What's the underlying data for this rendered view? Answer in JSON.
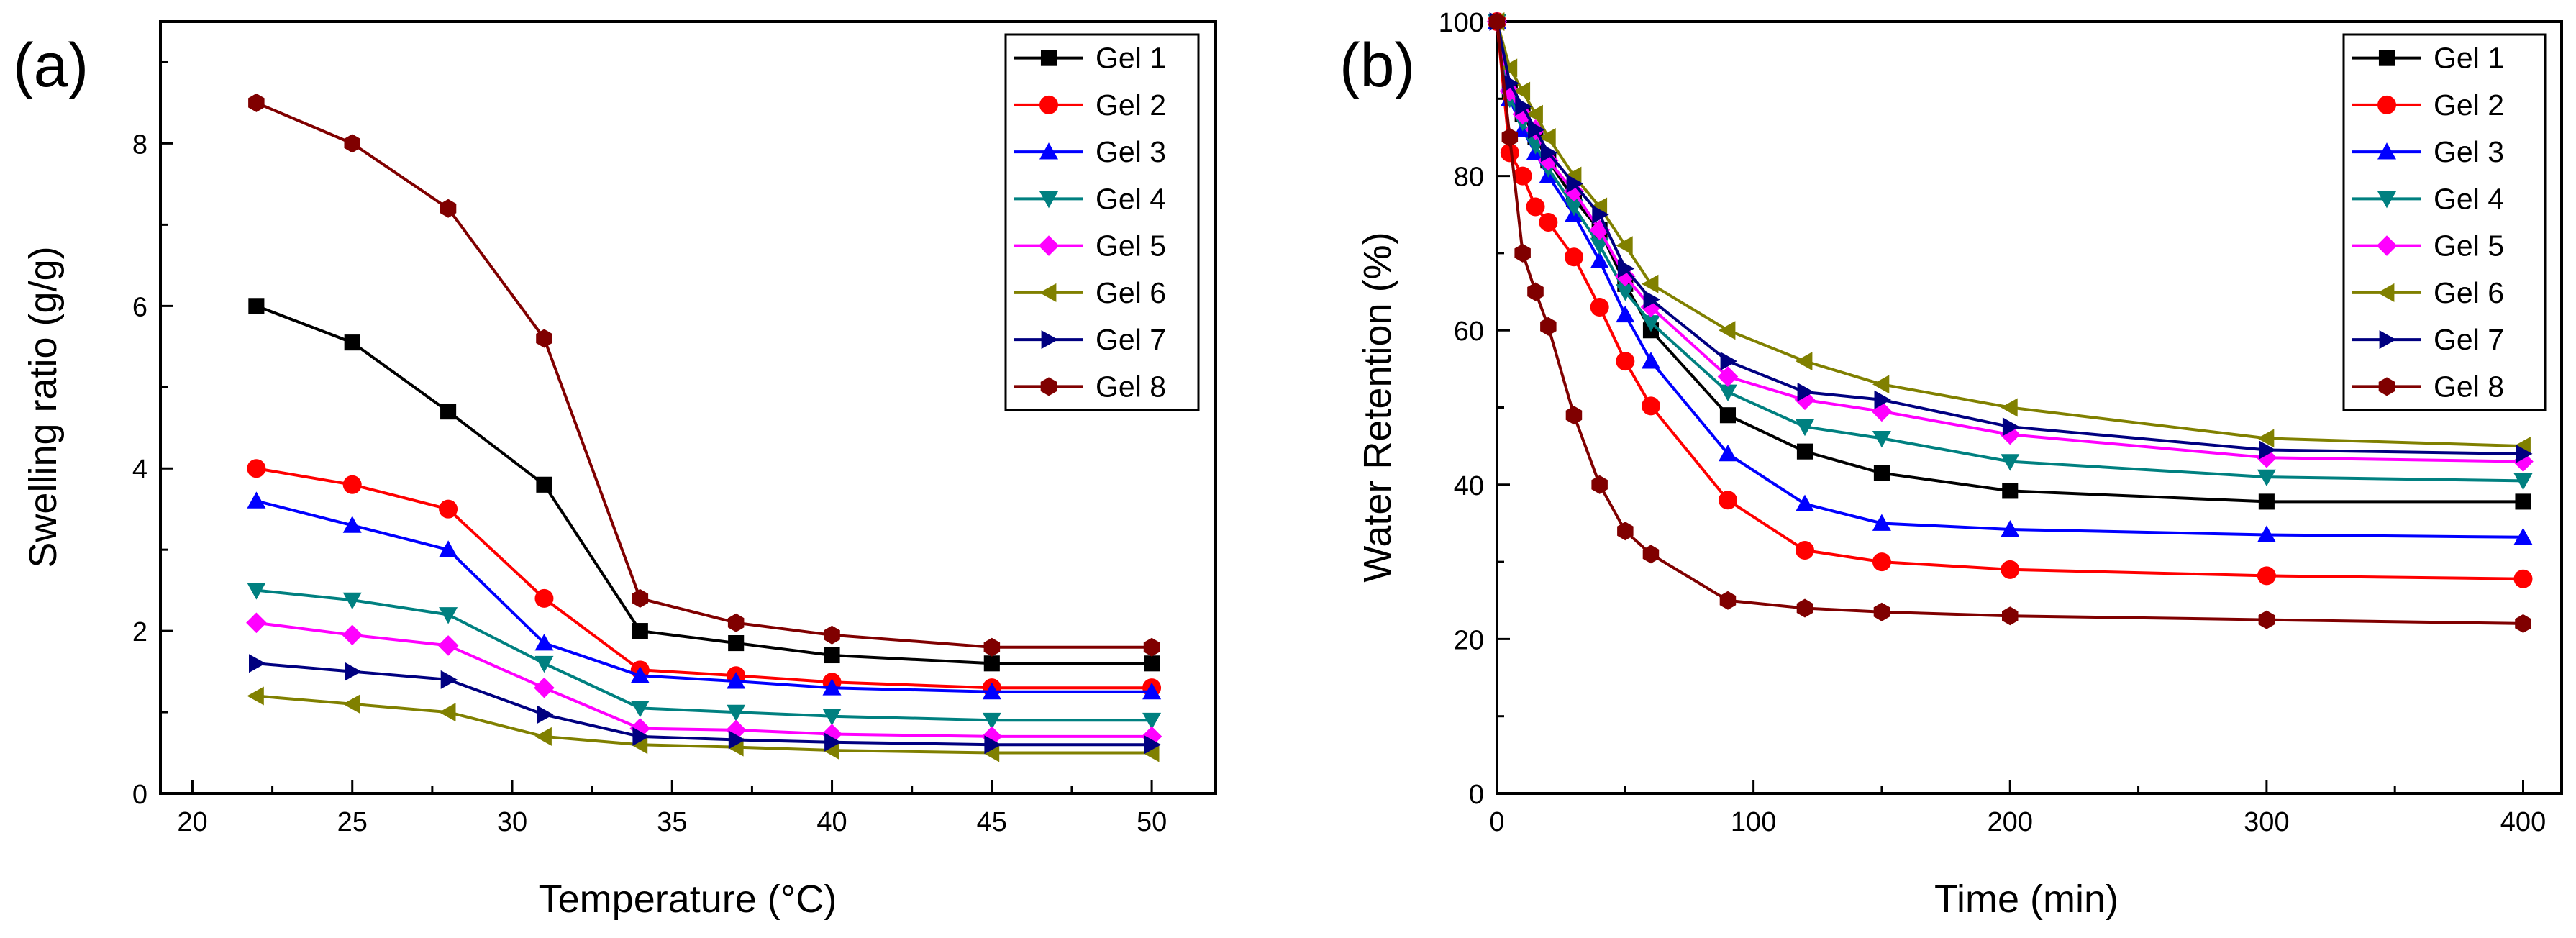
{
  "chart_data": [
    {
      "type": "line",
      "panel_label": "(a)",
      "title": "",
      "xlabel": "Temperature (°C)",
      "ylabel": "Swelling ratio (g/g)",
      "xlim": [
        19,
        52
      ],
      "ylim": [
        0,
        9.5
      ],
      "xticks": [
        20,
        25,
        30,
        35,
        40,
        45,
        50
      ],
      "yticks": [
        0,
        2,
        4,
        6,
        8
      ],
      "grid": false,
      "legend": "top-right",
      "x": [
        22,
        25,
        28,
        31,
        34,
        37,
        40,
        45,
        50
      ],
      "series": [
        {
          "name": "Gel 1",
          "color": "#000000",
          "marker": "square",
          "values": [
            6.0,
            5.55,
            4.7,
            3.8,
            2.0,
            1.85,
            1.7,
            1.6,
            1.6
          ]
        },
        {
          "name": "Gel 2",
          "color": "#ff0000",
          "marker": "circle",
          "values": [
            4.0,
            3.8,
            3.5,
            2.4,
            1.52,
            1.45,
            1.37,
            1.3,
            1.3
          ]
        },
        {
          "name": "Gel 3",
          "color": "#0000ff",
          "marker": "triangle-up",
          "values": [
            3.6,
            3.3,
            3.0,
            1.85,
            1.45,
            1.38,
            1.3,
            1.25,
            1.25
          ]
        },
        {
          "name": "Gel 4",
          "color": "#008080",
          "marker": "triangle-down",
          "values": [
            2.5,
            2.38,
            2.2,
            1.6,
            1.05,
            1.0,
            0.95,
            0.9,
            0.9
          ]
        },
        {
          "name": "Gel 5",
          "color": "#ff00ff",
          "marker": "diamond",
          "values": [
            2.1,
            1.95,
            1.82,
            1.3,
            0.8,
            0.78,
            0.73,
            0.7,
            0.7
          ]
        },
        {
          "name": "Gel 6",
          "color": "#808000",
          "marker": "triangle-left",
          "values": [
            1.2,
            1.1,
            1.0,
            0.7,
            0.6,
            0.57,
            0.53,
            0.5,
            0.5
          ]
        },
        {
          "name": "Gel 7",
          "color": "#000080",
          "marker": "triangle-right",
          "values": [
            1.6,
            1.5,
            1.4,
            0.97,
            0.7,
            0.66,
            0.63,
            0.6,
            0.6
          ]
        },
        {
          "name": "Gel 8",
          "color": "#800000",
          "marker": "hexagon",
          "values": [
            8.5,
            8.0,
            7.2,
            5.6,
            2.4,
            2.1,
            1.95,
            1.8,
            1.8
          ]
        }
      ]
    },
    {
      "type": "line",
      "panel_label": "(b)",
      "title": "",
      "xlabel": "Time (min)",
      "ylabel": "Water Retention (%)",
      "xlim": [
        0,
        415
      ],
      "ylim": [
        0,
        100
      ],
      "xticks": [
        0,
        100,
        200,
        300,
        400
      ],
      "yticks": [
        0,
        20,
        40,
        60,
        80,
        100
      ],
      "grid": false,
      "legend": "top-right",
      "x": [
        0,
        5,
        10,
        15,
        20,
        30,
        40,
        50,
        60,
        90,
        120,
        150,
        200,
        300,
        400
      ],
      "series": [
        {
          "name": "Gel 1",
          "color": "#000000",
          "marker": "square",
          "values": [
            100,
            91,
            88,
            85,
            82,
            77,
            73,
            66,
            60,
            49,
            44.3,
            41.5,
            39.2,
            37.8,
            37.8
          ]
        },
        {
          "name": "Gel 2",
          "color": "#ff0000",
          "marker": "circle",
          "values": [
            100,
            83,
            80,
            76,
            74,
            69.5,
            63,
            56,
            50.2,
            38,
            31.5,
            30,
            29,
            28.2,
            27.8
          ]
        },
        {
          "name": "Gel 3",
          "color": "#0000ff",
          "marker": "triangle-up",
          "values": [
            100,
            90,
            86,
            83,
            80,
            75,
            69,
            62,
            56,
            44,
            37.5,
            35,
            34.2,
            33.5,
            33.2
          ]
        },
        {
          "name": "Gel 4",
          "color": "#008080",
          "marker": "triangle-down",
          "values": [
            100,
            90,
            87,
            84,
            81,
            76,
            71,
            65,
            61,
            52,
            47.5,
            46,
            43,
            41,
            40.5
          ]
        },
        {
          "name": "Gel 5",
          "color": "#ff00ff",
          "marker": "diamond",
          "values": [
            100,
            91,
            88,
            86,
            82,
            78,
            73,
            67,
            63,
            54,
            51,
            49.5,
            46.5,
            43.5,
            43
          ]
        },
        {
          "name": "Gel 6",
          "color": "#808000",
          "marker": "triangle-left",
          "values": [
            100,
            94,
            91,
            88,
            85,
            80,
            76,
            71,
            66,
            60,
            56,
            53,
            50,
            46,
            45
          ]
        },
        {
          "name": "Gel 7",
          "color": "#000080",
          "marker": "triangle-right",
          "values": [
            100,
            92,
            89,
            86,
            83,
            79,
            75,
            68,
            64,
            56,
            52,
            51,
            47.5,
            44.5,
            44
          ]
        },
        {
          "name": "Gel 8",
          "color": "#800000",
          "marker": "hexagon",
          "values": [
            100,
            85,
            70,
            65,
            60.5,
            49,
            40,
            34,
            31,
            25,
            24,
            23.5,
            23,
            22.5,
            22
          ]
        }
      ]
    }
  ]
}
